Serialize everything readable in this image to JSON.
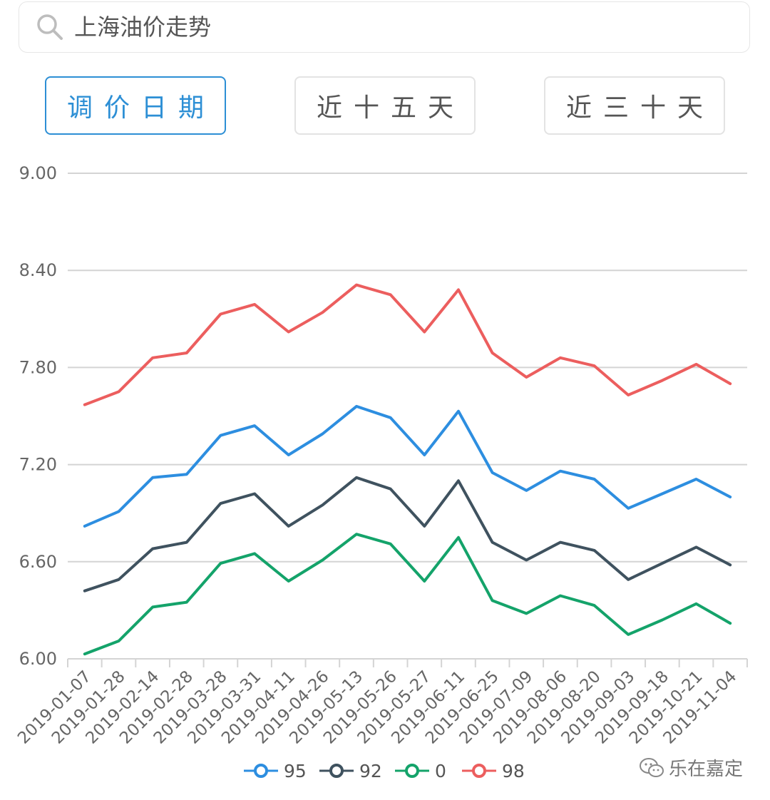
{
  "search": {
    "value": "上海油价走势",
    "icon": "search-icon"
  },
  "tabs": [
    {
      "label": "调价日期",
      "active": true
    },
    {
      "label": "近十五天",
      "active": false
    },
    {
      "label": "近三十天",
      "active": false
    }
  ],
  "watermark": {
    "text": "乐在嘉定",
    "icon": "wechat-icon"
  },
  "colors": {
    "accent": "#2d8fd5",
    "s95": "#2d8ee0",
    "s92": "#3f525f",
    "s0": "#14a36a",
    "s98": "#ec5e5e"
  },
  "chart_data": {
    "type": "line",
    "x": [
      "2019-01-07",
      "2019-01-28",
      "2019-02-14",
      "2019-02-28",
      "2019-03-28",
      "2019-03-31",
      "2019-04-11",
      "2019-04-26",
      "2019-05-13",
      "2019-05-26",
      "2019-05-27",
      "2019-06-11",
      "2019-06-25",
      "2019-07-09",
      "2019-08-06",
      "2019-08-20",
      "2019-09-03",
      "2019-09-18",
      "2019-10-21",
      "2019-11-04"
    ],
    "yticks": [
      "9.00",
      "8.40",
      "7.80",
      "7.20",
      "6.60",
      "6.00"
    ],
    "ylim": [
      6.0,
      9.0
    ],
    "grid": true,
    "legend_position": "bottom",
    "series": [
      {
        "name": "95",
        "color": "#2d8ee0",
        "values": [
          6.82,
          6.91,
          7.12,
          7.14,
          7.38,
          7.44,
          7.26,
          7.39,
          7.56,
          7.49,
          7.26,
          7.53,
          7.15,
          7.04,
          7.16,
          7.11,
          6.93,
          7.02,
          7.11,
          7.0
        ]
      },
      {
        "name": "92",
        "color": "#3f525f",
        "values": [
          6.42,
          6.49,
          6.68,
          6.72,
          6.96,
          7.02,
          6.82,
          6.95,
          7.12,
          7.05,
          6.82,
          7.1,
          6.72,
          6.61,
          6.72,
          6.67,
          6.49,
          6.59,
          6.69,
          6.58
        ]
      },
      {
        "name": "0",
        "color": "#14a36a",
        "values": [
          6.03,
          6.11,
          6.32,
          6.35,
          6.59,
          6.65,
          6.48,
          6.61,
          6.77,
          6.71,
          6.48,
          6.75,
          6.36,
          6.28,
          6.39,
          6.33,
          6.15,
          6.24,
          6.34,
          6.22
        ]
      },
      {
        "name": "98",
        "color": "#ec5e5e",
        "values": [
          7.57,
          7.65,
          7.86,
          7.89,
          8.13,
          8.19,
          8.02,
          8.14,
          8.31,
          8.25,
          8.02,
          8.28,
          7.89,
          7.74,
          7.86,
          7.81,
          7.63,
          7.72,
          7.82,
          7.7
        ]
      }
    ]
  }
}
